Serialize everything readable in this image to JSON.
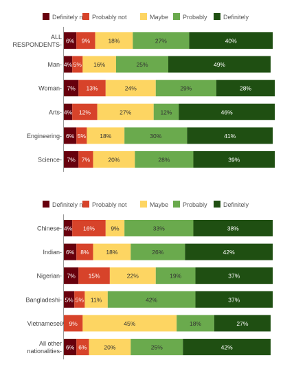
{
  "colors": {
    "definitely_not": "#67000d",
    "probably_not": "#d7432a",
    "maybe": "#fdd562",
    "probably": "#6aaa4d",
    "definitely": "#1f4f12",
    "text_dark": "#333333",
    "text_light": "#ffffff",
    "axis": "#999999"
  },
  "chart_data": [
    {
      "type": "bar",
      "orientation": "horizontal-stacked",
      "xlim": [
        0,
        100
      ],
      "unit": "%",
      "legend_position": "top-left",
      "legend": [
        "Definitely not",
        "Probably not",
        "Maybe",
        "Probably",
        "Definitely"
      ],
      "categories": [
        [
          "ALL",
          "RESPONDENTS"
        ],
        [
          "Man"
        ],
        [
          "Woman"
        ],
        [
          "Arts"
        ],
        [
          "Engineering"
        ],
        [
          "Science"
        ]
      ],
      "series": [
        {
          "name": "Definitely not",
          "values": [
            6,
            4,
            7,
            4,
            6,
            7
          ]
        },
        {
          "name": "Probably not",
          "values": [
            9,
            5,
            13,
            12,
            5,
            7
          ]
        },
        {
          "name": "Maybe",
          "values": [
            18,
            16,
            24,
            27,
            18,
            20
          ]
        },
        {
          "name": "Probably",
          "values": [
            27,
            25,
            29,
            12,
            30,
            28
          ]
        },
        {
          "name": "Definitely",
          "values": [
            40,
            49,
            28,
            46,
            41,
            39
          ]
        }
      ]
    },
    {
      "type": "bar",
      "orientation": "horizontal-stacked",
      "xlim": [
        0,
        100
      ],
      "unit": "%",
      "legend_position": "top-left",
      "legend": [
        "Definitely not",
        "Probably not",
        "Maybe",
        "Probably",
        "Definitely"
      ],
      "categories": [
        [
          "Chinese"
        ],
        [
          "Indian"
        ],
        [
          "Nigerian"
        ],
        [
          "Bangladeshi"
        ],
        [
          "Vietnamese"
        ],
        [
          "All other",
          "nationalities"
        ]
      ],
      "series": [
        {
          "name": "Definitely not",
          "values": [
            4,
            6,
            7,
            5,
            0,
            6
          ]
        },
        {
          "name": "Probably not",
          "values": [
            16,
            8,
            15,
            5,
            9,
            6
          ]
        },
        {
          "name": "Maybe",
          "values": [
            9,
            18,
            22,
            11,
            45,
            20
          ]
        },
        {
          "name": "Probably",
          "values": [
            33,
            26,
            19,
            42,
            18,
            25
          ]
        },
        {
          "name": "Definitely",
          "values": [
            38,
            42,
            37,
            37,
            27,
            42
          ]
        }
      ]
    }
  ]
}
